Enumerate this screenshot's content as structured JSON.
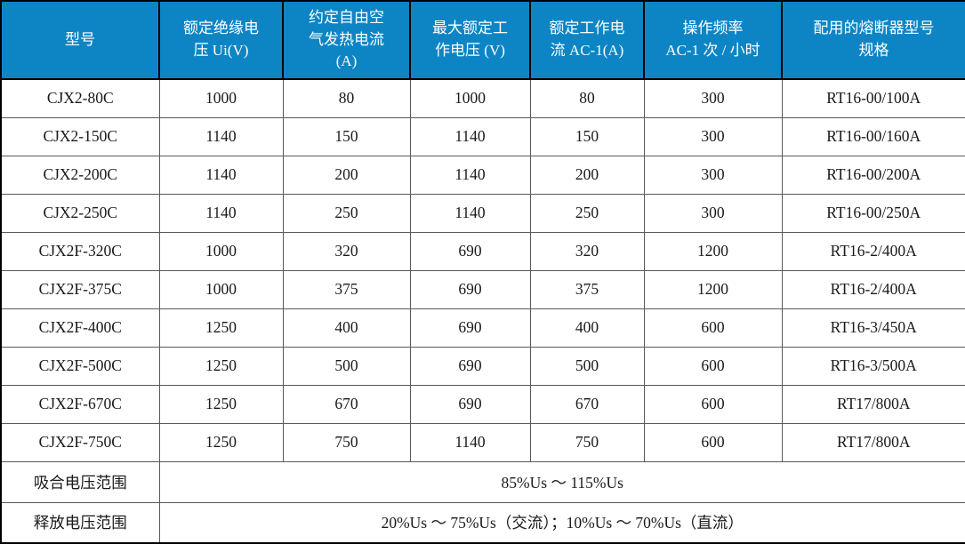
{
  "table": {
    "columns": [
      "型号",
      "额定绝缘电\n压 Ui(V)",
      "约定自由空\n气发热电流\n(A)",
      "最大额定工\n作电压 (V)",
      "额定工作电\n流 AC-1(A)",
      "操作频率\nAC-1 次 / 小时",
      "配用的熔断器型号\n规格"
    ],
    "rows": [
      [
        "CJX2-80C",
        "1000",
        "80",
        "1000",
        "80",
        "300",
        "RT16-00/100A"
      ],
      [
        "CJX2-150C",
        "1140",
        "150",
        "1140",
        "150",
        "300",
        "RT16-00/160A"
      ],
      [
        "CJX2-200C",
        "1140",
        "200",
        "1140",
        "200",
        "300",
        "RT16-00/200A"
      ],
      [
        "CJX2-250C",
        "1140",
        "250",
        "1140",
        "250",
        "300",
        "RT16-00/250A"
      ],
      [
        "CJX2F-320C",
        "1000",
        "320",
        "690",
        "320",
        "1200",
        "RT16-2/400A"
      ],
      [
        "CJX2F-375C",
        "1000",
        "375",
        "690",
        "375",
        "1200",
        "RT16-2/400A"
      ],
      [
        "CJX2F-400C",
        "1250",
        "400",
        "690",
        "400",
        "600",
        "RT16-3/450A"
      ],
      [
        "CJX2F-500C",
        "1250",
        "500",
        "690",
        "500",
        "600",
        "RT16-3/500A"
      ],
      [
        "CJX2F-670C",
        "1250",
        "670",
        "690",
        "670",
        "600",
        "RT17/800A"
      ],
      [
        "CJX2F-750C",
        "1250",
        "750",
        "1140",
        "750",
        "600",
        "RT17/800A"
      ]
    ],
    "footer_rows": [
      {
        "label": "吸合电压范围",
        "value": "85%Us ～ 115%Us"
      },
      {
        "label": "释放电压范围",
        "value": "20%Us ～ 75%Us（交流）；10%Us ～ 70%Us（直流）"
      }
    ],
    "colors": {
      "header_bg": "#0d85c5",
      "header_text": "#ffffff",
      "body_text": "#1a1a1a",
      "grid_line": "#595959",
      "outer_border": "#000000"
    }
  }
}
